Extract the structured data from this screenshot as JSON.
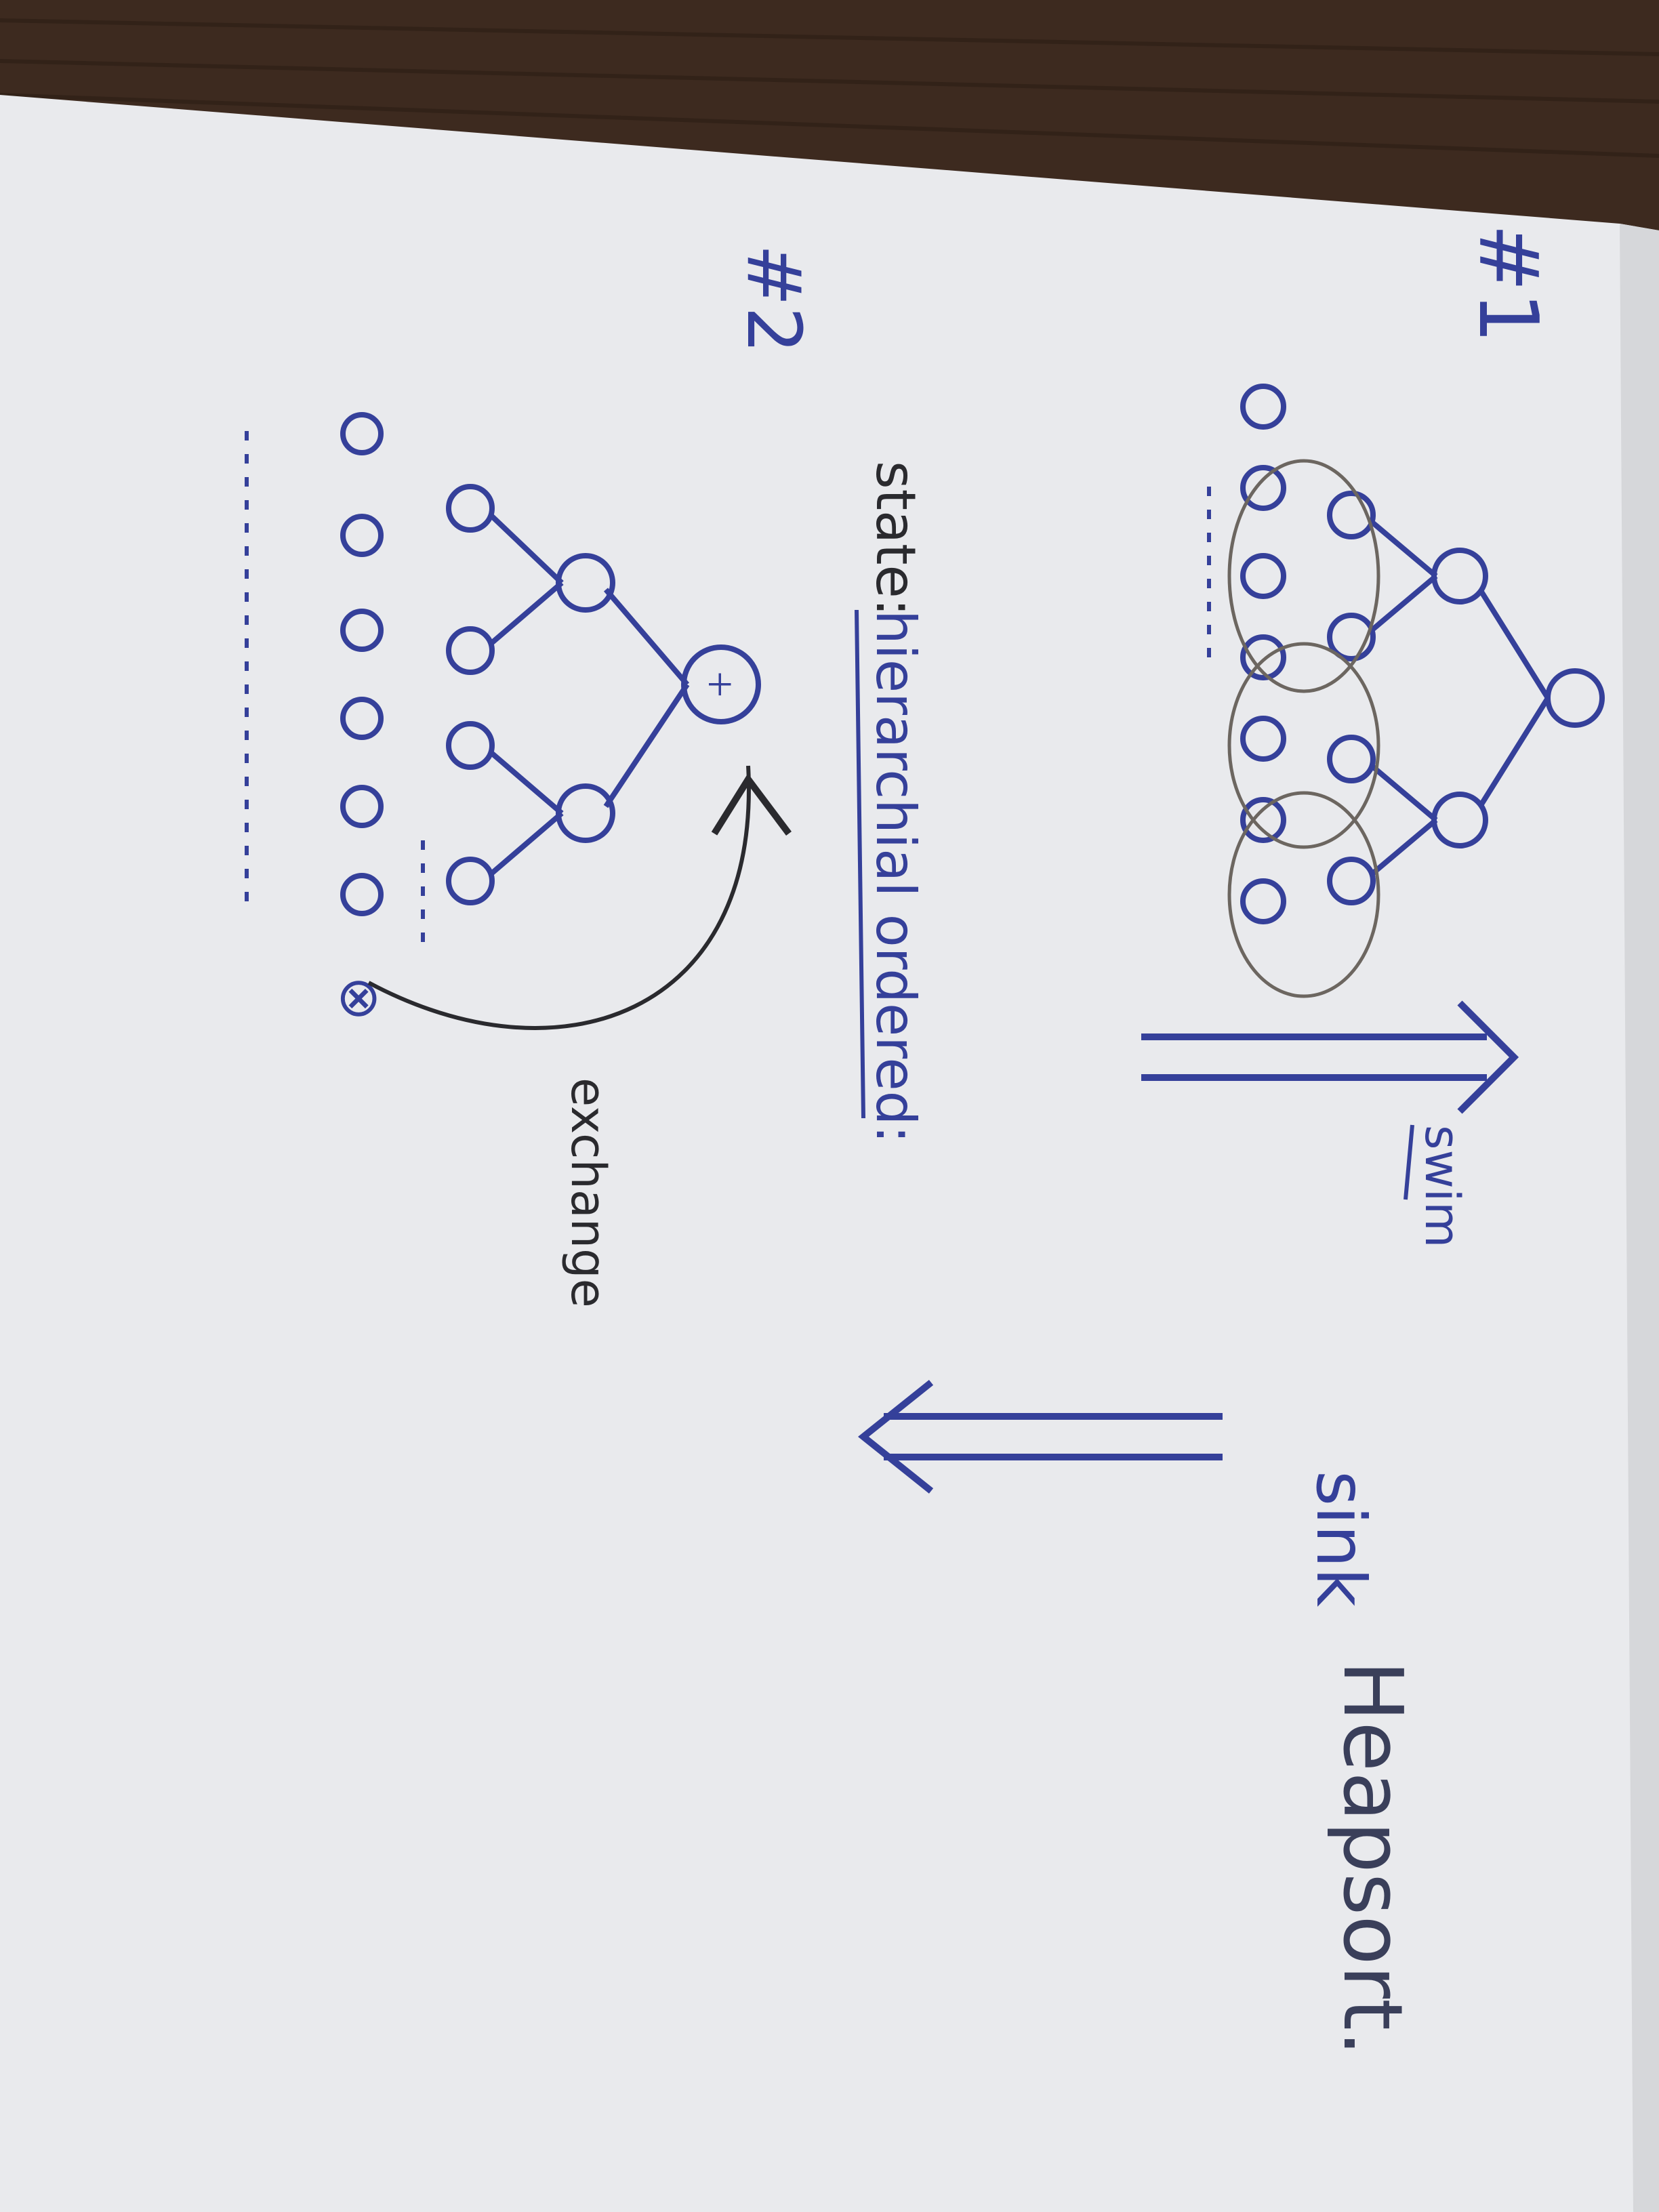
{
  "photo": {
    "paper_color": "#e9eaed",
    "table_color": "#3d2a1f",
    "ink_blue": "#35409a",
    "ink_black": "#2a2a2e",
    "highlight_grey": "#6c6660"
  },
  "labels": {
    "title": "Heapsort.",
    "section1": "#1",
    "section2": "#2",
    "swim": "swim",
    "sink": "sink",
    "exchange": "exchange",
    "state": "state:",
    "state_value": "hierarchial ordered:",
    "x_mark": "⊗",
    "plus_mark": "+"
  }
}
